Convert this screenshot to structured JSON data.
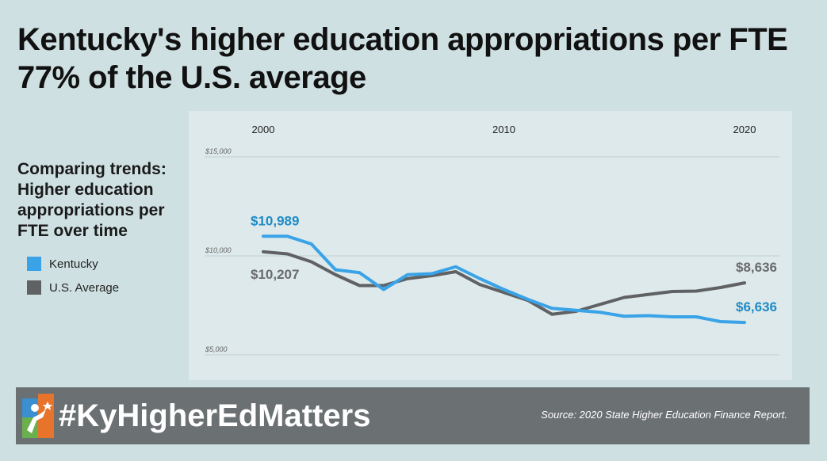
{
  "title_line1": "Kentucky's higher education appropriations per FTE",
  "title_line2": "77% of the U.S. average",
  "side_heading": "Comparing trends: Higher education appropriations per FTE over time",
  "footer": {
    "hashtag": "#KyHigherEdMatters",
    "source": "Source: 2020 State Higher Education Finance Report."
  },
  "colors": {
    "kentucky": "#3aa3e8",
    "us_average": "#5f6163",
    "label_kentucky": "#1f8ac7",
    "label_us": "#6a6c6e"
  },
  "chart_data": {
    "type": "line",
    "x_tick_labels": [
      "2000",
      "2010",
      "2020"
    ],
    "x_tick_values": [
      2000,
      2010,
      2020
    ],
    "y_tick_labels": [
      "$15,000",
      "$10,000",
      "$5,000"
    ],
    "y_tick_values": [
      15000,
      10000,
      5000
    ],
    "ylim": [
      5000,
      15000
    ],
    "xlim": [
      1999.5,
      2021
    ],
    "grid": true,
    "legend_position": "left",
    "x": [
      2000,
      2001,
      2002,
      2003,
      2004,
      2005,
      2006,
      2007,
      2008,
      2009,
      2010,
      2011,
      2012,
      2013,
      2014,
      2015,
      2016,
      2017,
      2018,
      2019,
      2020
    ],
    "series": [
      {
        "name": "Kentucky",
        "color": "#3aa3e8",
        "values": [
          10989,
          10989,
          10600,
          9300,
          9150,
          8300,
          9050,
          9100,
          9450,
          8850,
          8300,
          7800,
          7350,
          7250,
          7150,
          6950,
          6980,
          6920,
          6920,
          6680,
          6636
        ],
        "start_label": "$10,989",
        "end_label": "$6,636"
      },
      {
        "name": "U.S. Average",
        "color": "#5f6163",
        "values": [
          10207,
          10100,
          9700,
          9050,
          8500,
          8500,
          8850,
          9000,
          9200,
          8550,
          8150,
          7750,
          7050,
          7200,
          7550,
          7900,
          8050,
          8200,
          8220,
          8400,
          8636
        ],
        "start_label": "$10,207",
        "end_label": "$8,636"
      }
    ]
  }
}
